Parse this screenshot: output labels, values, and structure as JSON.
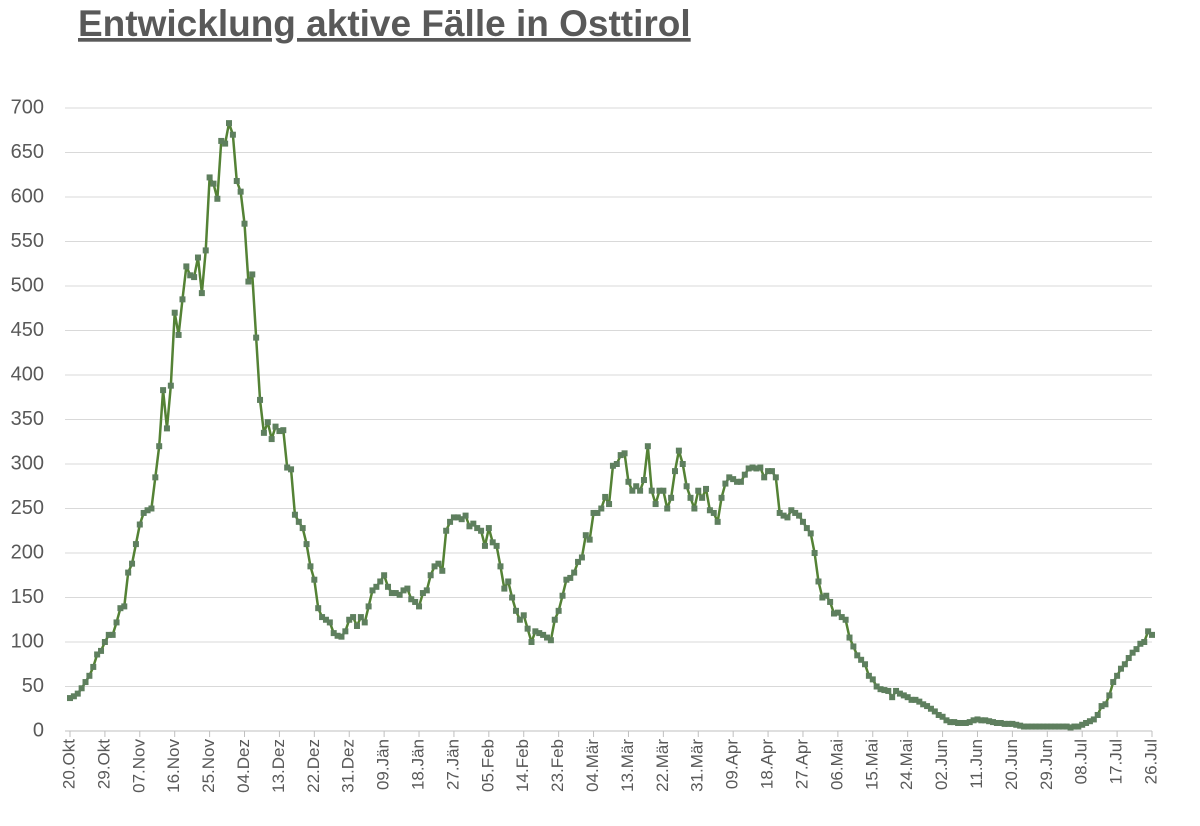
{
  "chart_data": {
    "type": "line",
    "title": "Entwicklung aktive Fälle in Osttirol",
    "categories": [
      "20.Okt",
      null,
      null,
      null,
      null,
      null,
      null,
      null,
      null,
      "29.Okt",
      null,
      null,
      null,
      null,
      null,
      null,
      null,
      null,
      "07.Nov",
      null,
      null,
      null,
      null,
      null,
      null,
      null,
      null,
      "16.Nov",
      null,
      null,
      null,
      null,
      null,
      null,
      null,
      null,
      "25.Nov",
      null,
      null,
      null,
      null,
      null,
      null,
      null,
      null,
      "04.Dez",
      null,
      null,
      null,
      null,
      null,
      null,
      null,
      null,
      "13.Dez",
      null,
      null,
      null,
      null,
      null,
      null,
      null,
      null,
      "22.Dez",
      null,
      null,
      null,
      null,
      null,
      null,
      null,
      null,
      "31.Dez",
      null,
      null,
      null,
      null,
      null,
      null,
      null,
      null,
      "09.Jän",
      null,
      null,
      null,
      null,
      null,
      null,
      null,
      null,
      "18.Jän",
      null,
      null,
      null,
      null,
      null,
      null,
      null,
      null,
      "27.Jän",
      null,
      null,
      null,
      null,
      null,
      null,
      null,
      null,
      "05.Feb",
      null,
      null,
      null,
      null,
      null,
      null,
      null,
      null,
      "14.Feb",
      null,
      null,
      null,
      null,
      null,
      null,
      null,
      null,
      "23.Feb",
      null,
      null,
      null,
      null,
      null,
      null,
      null,
      null,
      "04.Mär",
      null,
      null,
      null,
      null,
      null,
      null,
      null,
      null,
      "13.Mär",
      null,
      null,
      null,
      null,
      null,
      null,
      null,
      null,
      "22.Mär",
      null,
      null,
      null,
      null,
      null,
      null,
      null,
      null,
      "31.Mär",
      null,
      null,
      null,
      null,
      null,
      null,
      null,
      null,
      "09.Apr",
      null,
      null,
      null,
      null,
      null,
      null,
      null,
      null,
      "18.Apr",
      null,
      null,
      null,
      null,
      null,
      null,
      null,
      null,
      "27.Apr",
      null,
      null,
      null,
      null,
      null,
      null,
      null,
      null,
      "06.Mai",
      null,
      null,
      null,
      null,
      null,
      null,
      null,
      null,
      "15.Mai",
      null,
      null,
      null,
      null,
      null,
      null,
      null,
      null,
      "24.Mai",
      null,
      null,
      null,
      null,
      null,
      null,
      null,
      null,
      "02.Jun",
      null,
      null,
      null,
      null,
      null,
      null,
      null,
      null,
      "11.Jun",
      null,
      null,
      null,
      null,
      null,
      null,
      null,
      null,
      "20.Jun",
      null,
      null,
      null,
      null,
      null,
      null,
      null,
      null,
      "29.Jun",
      null,
      null,
      null,
      null,
      null,
      null,
      null,
      null,
      "08.Jul",
      null,
      null,
      null,
      null,
      null,
      null,
      null,
      null,
      "17.Jul",
      null,
      null,
      null,
      null,
      null,
      null,
      null,
      null,
      "26.Jul"
    ],
    "values": [
      37,
      39,
      42,
      48,
      55,
      62,
      72,
      86,
      90,
      100,
      108,
      108,
      122,
      138,
      140,
      178,
      188,
      210,
      232,
      245,
      248,
      250,
      285,
      320,
      383,
      340,
      388,
      470,
      445,
      485,
      522,
      512,
      510,
      532,
      492,
      540,
      622,
      615,
      598,
      663,
      660,
      683,
      670,
      618,
      606,
      570,
      505,
      513,
      442,
      372,
      335,
      347,
      328,
      342,
      337,
      338,
      296,
      294,
      243,
      235,
      228,
      210,
      185,
      170,
      138,
      128,
      125,
      122,
      110,
      107,
      106,
      112,
      125,
      128,
      118,
      128,
      122,
      140,
      158,
      162,
      168,
      175,
      162,
      155,
      155,
      153,
      158,
      160,
      148,
      145,
      140,
      155,
      158,
      175,
      185,
      188,
      180,
      225,
      235,
      240,
      240,
      238,
      242,
      230,
      233,
      228,
      225,
      208,
      228,
      212,
      208,
      185,
      160,
      168,
      150,
      135,
      125,
      130,
      115,
      100,
      112,
      110,
      108,
      105,
      102,
      125,
      135,
      152,
      170,
      172,
      178,
      190,
      195,
      220,
      215,
      245,
      245,
      250,
      263,
      255,
      298,
      300,
      310,
      312,
      280,
      270,
      275,
      270,
      282,
      320,
      270,
      255,
      270,
      270,
      250,
      262,
      292,
      315,
      300,
      275,
      262,
      250,
      270,
      262,
      272,
      248,
      245,
      235,
      262,
      278,
      285,
      283,
      280,
      280,
      288,
      295,
      296,
      295,
      296,
      285,
      292,
      292,
      285,
      245,
      242,
      240,
      248,
      245,
      242,
      235,
      228,
      222,
      200,
      168,
      150,
      152,
      145,
      132,
      133,
      128,
      125,
      105,
      95,
      85,
      80,
      75,
      62,
      58,
      50,
      47,
      46,
      45,
      38,
      45,
      42,
      40,
      38,
      35,
      35,
      33,
      30,
      28,
      25,
      22,
      18,
      16,
      12,
      10,
      10,
      9,
      9,
      9,
      10,
      12,
      13,
      12,
      12,
      11,
      10,
      9,
      9,
      8,
      8,
      8,
      7,
      6,
      5,
      5,
      5,
      5,
      5,
      5,
      5,
      5,
      5,
      5,
      5,
      5,
      4,
      5,
      5,
      7,
      9,
      11,
      13,
      18,
      28,
      30,
      40,
      55,
      62,
      70,
      75,
      82,
      88,
      92,
      98,
      100,
      112,
      108
    ],
    "color": "#548235",
    "marker_color": "#5e7f5e",
    "ylim": [
      0,
      700
    ],
    "yticks": [
      0,
      50,
      100,
      150,
      200,
      250,
      300,
      350,
      400,
      450,
      500,
      550,
      600,
      650,
      700
    ],
    "grid": true
  }
}
